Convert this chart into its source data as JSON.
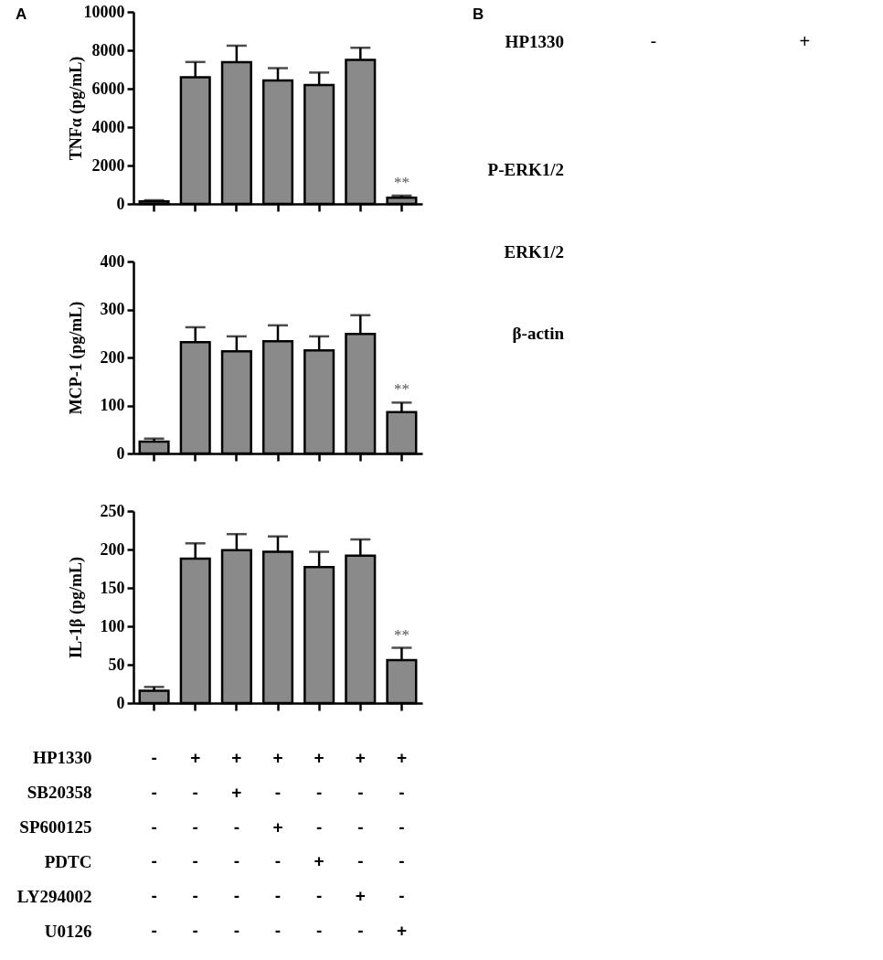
{
  "chart_data": [
    {
      "type": "bar",
      "title": "A",
      "ylabel": "TNFα (pg/mL)",
      "categories": [
        null,
        null,
        null,
        null,
        null,
        null,
        null
      ],
      "values": [
        130,
        6590,
        7380,
        6430,
        6190,
        7500,
        320
      ],
      "errors": [
        60,
        800,
        860,
        640,
        650,
        630,
        110
      ],
      "color": "#8a8a8a",
      "ylim": [
        0,
        10000
      ],
      "yticks": [
        0,
        2000,
        4000,
        6000,
        8000,
        10000
      ],
      "annotations": [
        "**"
      ]
    },
    {
      "type": "bar",
      "ylabel": "MCP-1 (pg/mL)",
      "categories": [
        null,
        null,
        null,
        null,
        null,
        null,
        null
      ],
      "values": [
        25,
        232,
        213,
        234,
        215,
        249,
        86
      ],
      "errors": [
        6,
        31,
        31,
        33,
        29,
        39,
        20
      ],
      "color": "#8a8a8a",
      "ylim": [
        0,
        400
      ],
      "yticks": [
        0,
        100,
        200,
        300,
        400
      ],
      "annotations": [
        "**"
      ]
    },
    {
      "type": "bar",
      "ylabel": "IL-1β (pg/mL)",
      "categories": [
        null,
        null,
        null,
        null,
        null,
        null,
        null
      ],
      "values": [
        16,
        188,
        199,
        197,
        177,
        192,
        56
      ],
      "errors": [
        5,
        20,
        21,
        20,
        20,
        21,
        16
      ],
      "color": "#8a8a8a",
      "ylim": [
        0,
        250
      ],
      "yticks": [
        0,
        50,
        100,
        150,
        200,
        250
      ],
      "annotations": [
        "**"
      ]
    },
    {
      "type": "other",
      "categories": [
        null,
        null,
        null,
        null,
        null,
        null,
        null
      ],
      "y_categories": [
        "HP1330",
        "SB20358",
        "SP600125",
        "PDTC",
        "LY294002",
        "U0126"
      ],
      "cell_labels": [
        [
          "-",
          "+",
          "+",
          "+",
          "+",
          "+",
          "+"
        ],
        [
          "-",
          "-",
          "+",
          "-",
          "-",
          "-",
          "-"
        ],
        [
          "-",
          "-",
          "-",
          "+",
          "-",
          "-",
          "-"
        ],
        [
          "-",
          "-",
          "-",
          "-",
          "+",
          "-",
          "-"
        ],
        [
          "-",
          "-",
          "-",
          "-",
          "-",
          "+",
          "-"
        ],
        [
          "-",
          "-",
          "-",
          "-",
          "-",
          "-",
          "+"
        ]
      ]
    },
    {
      "type": "other",
      "title": "B",
      "xlabel": "HP1330",
      "categories": [
        "-",
        "+"
      ],
      "y_categories": [
        "P-ERK1/2",
        "ERK1/2",
        "β-actin"
      ]
    }
  ]
}
